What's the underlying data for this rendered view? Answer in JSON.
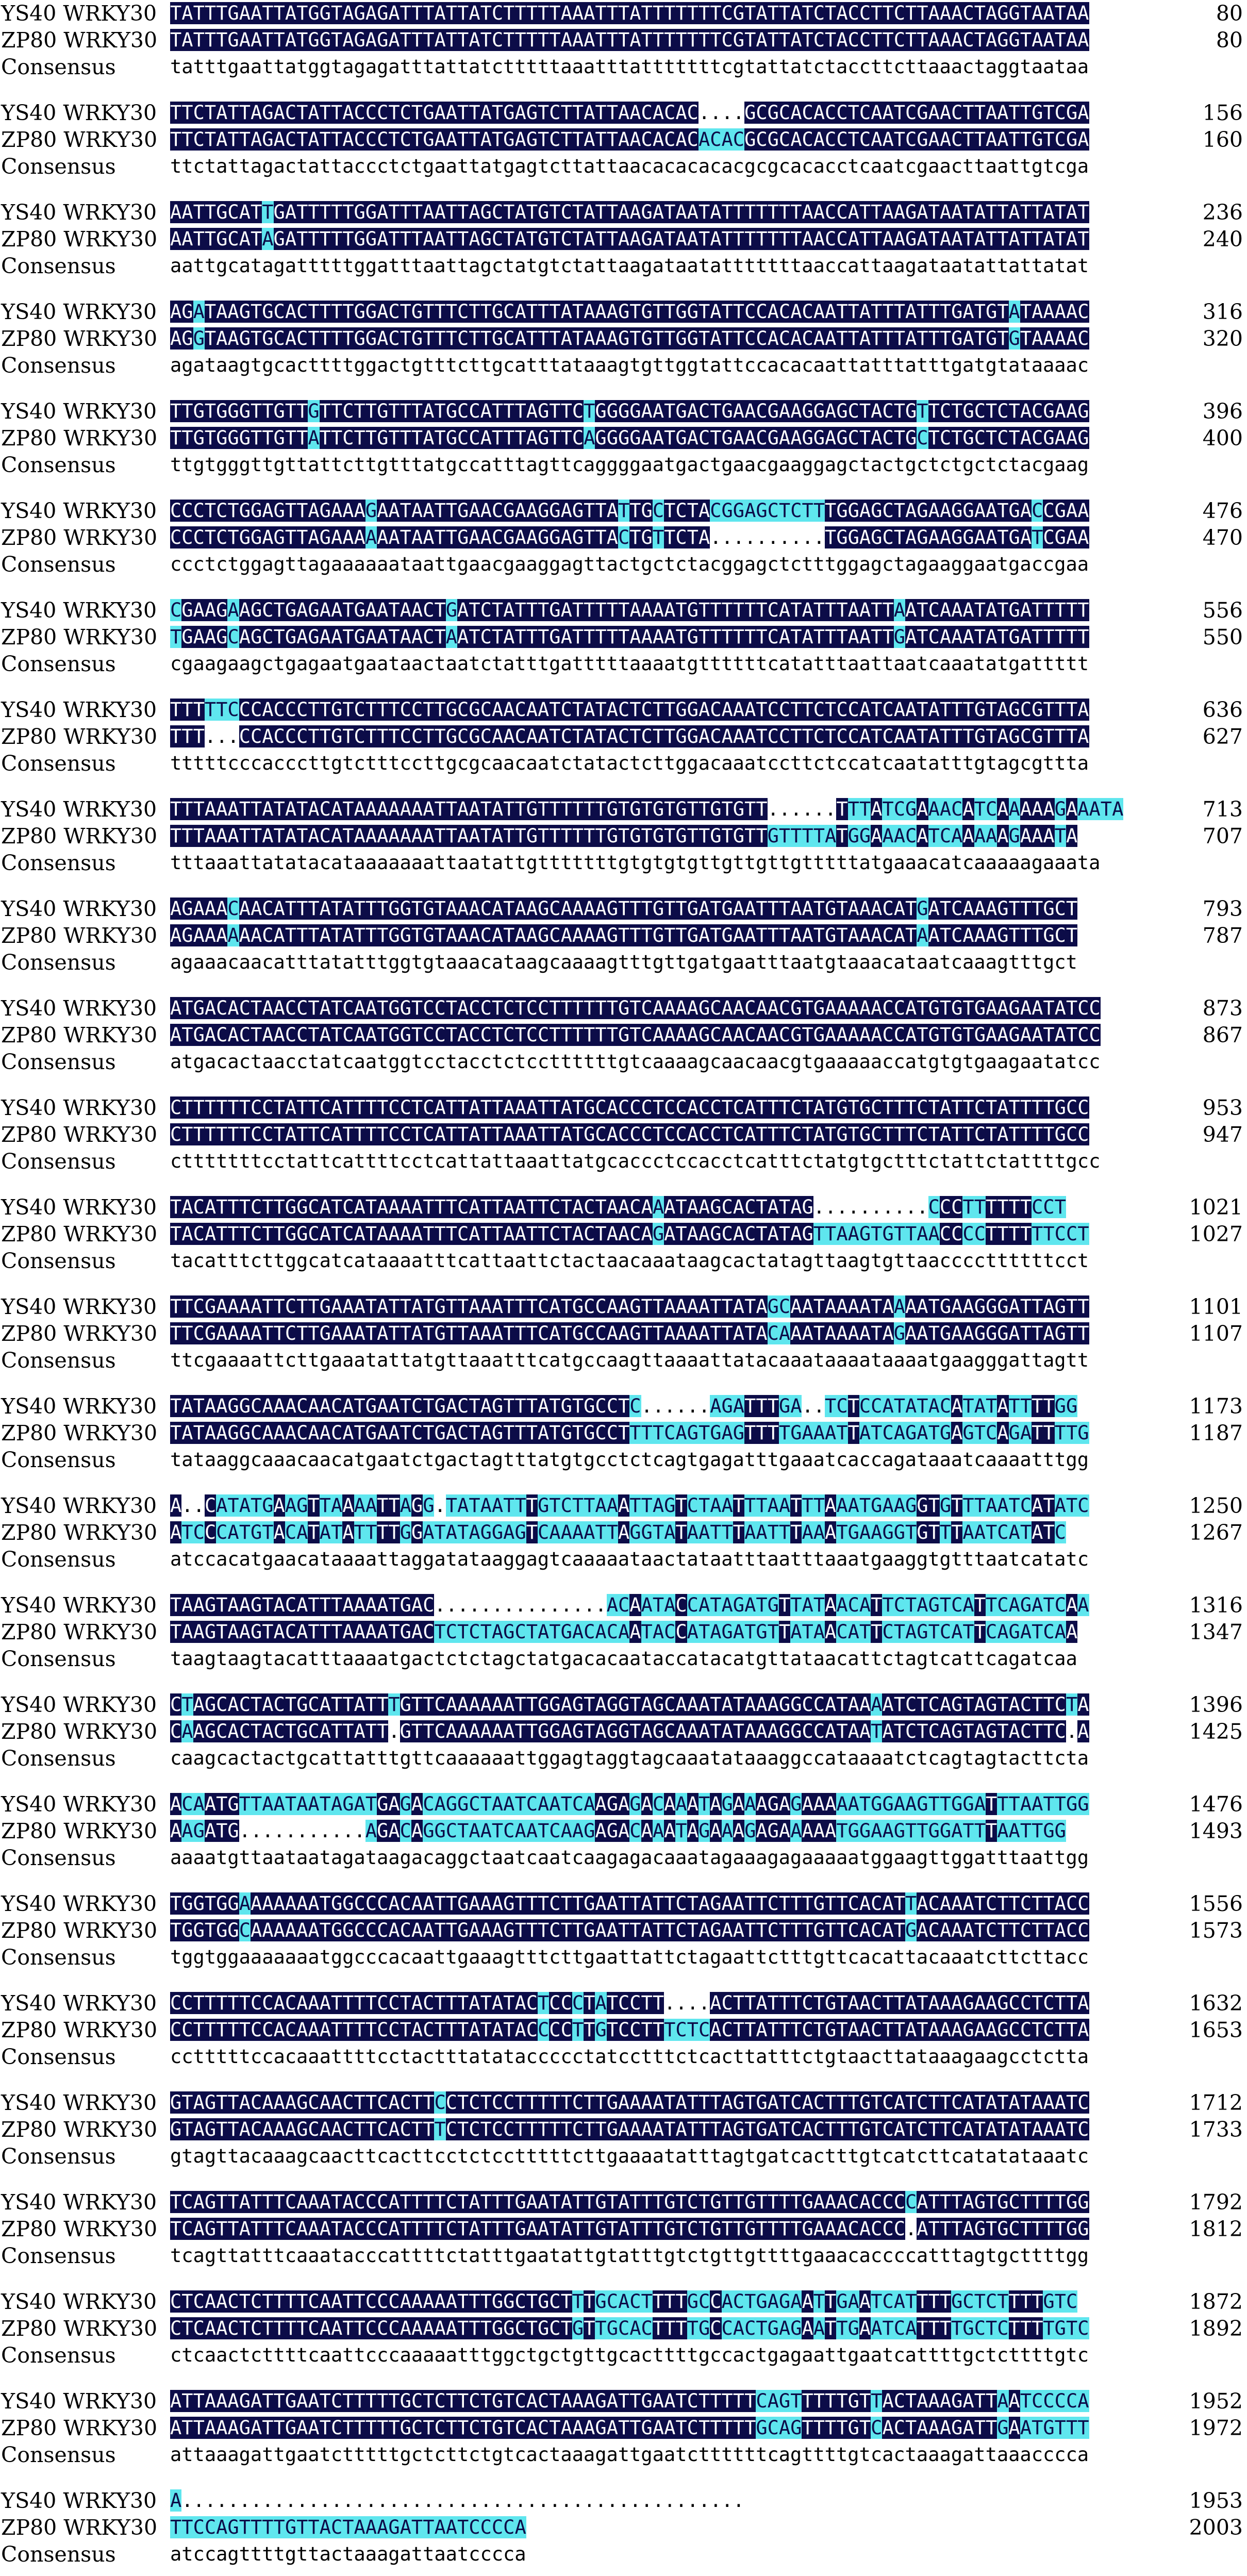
{
  "labels": {
    "seq1": "YS40 WRKY30",
    "seq2": "ZP80 WRKY30",
    "consensus": "Consensus"
  },
  "colors": {
    "identical_bg": "#0c0c48",
    "identical_fg": "#ffffff",
    "partial_bg": "#5fe6ee",
    "background": "#ffffff"
  },
  "blocks": [
    {
      "s1": "TATTTGAATTATGGTAGAGATTTATTATCTTTTTAAATTTATTTTTTTCGTATTATCTACCTTCTTAAACTAGGTAATAA",
      "s2": "TATTTGAATTATGGTAGAGATTTATTATCTTTTTAAATTTATTTTTTTCGTATTATCTACCTTCTTAAACTAGGTAATAA",
      "cons": "tatttgaattatggtagagatttattatctttttaaatttatttttttcgtattatctaccttcttaaactaggtaataa",
      "n1": "80",
      "n2": "80"
    },
    {
      "s1": "TTCTATTAGACTATTACCCTCTGAATTATGAGTCTTATTAACACAC....GCGCACACCTCAATCGAACTTAATTGTCGA",
      "s2": "TTCTATTAGACTATTACCCTCTGAATTATGAGTCTTATTAACACACACACGCGCACACCTCAATCGAACTTAATTGTCGA",
      "cons": "ttctattagactattaccctctgaattatgagtcttattaacacacacacgcgcacacctcaatcgaacttaattgtcga",
      "n1": "156",
      "n2": "160"
    },
    {
      "s1": "AATTGCATTGATTTTTGGATTTAATTAGCTATGTCTATTAAGATAATATTTTTTTAACCATTAAGATAATATTATTATAT",
      "s2": "AATTGCATAGATTTTTGGATTTAATTAGCTATGTCTATTAAGATAATATTTTTTTAACCATTAAGATAATATTATTATAT",
      "cons": "aattgcatagatttttggatttaattagctatgtctattaagataatatttttttaaccattaagataatattattatat",
      "n1": "236",
      "n2": "240"
    },
    {
      "s1": "AGATAAGTGCACTTTTGGACTGTTTCTTGCATTTATAAAGTGTTGGTATTCCACACAATTATTTATTTGATGTATAAAAC",
      "s2": "AGGTAAGTGCACTTTTGGACTGTTTCTTGCATTTATAAAGTGTTGGTATTCCACACAATTATTTATTTGATGTGTAAAAC",
      "cons": "agataagtgcacttttggactgtttcttgcatttataaagtgttggtattccacacaattatttatttgatgtataaaac",
      "n1": "316",
      "n2": "320"
    },
    {
      "s1": "TTGTGGGTTGTTGTTCTTGTTTATGCCATTTAGTTCTGGGGAATGACTGAACGAAGGAGCTACTGTTCTGCTCTACGAAG",
      "s2": "TTGTGGGTTGTTATTCTTGTTTATGCCATTTAGTTCAGGGGAATGACTGAACGAAGGAGCTACTGCTCTGCTCTACGAAG",
      "cons": "ttgtgggttgttattcttgtttatgccatttagttcaggggaatgactgaacgaaggagctactgctctgctctacgaag",
      "n1": "396",
      "n2": "400"
    },
    {
      "s1": "CCCTCTGGAGTTAGAAAGAATAATTGAACGAAGGAGTTATTGCTCTACGGAGCTCTTTGGAGCTAGAAGGAATGACCGAA",
      "s2": "CCCTCTGGAGTTAGAAAAAATAATTGAACGAAGGAGTTACTGTTCTA..........TGGAGCTAGAAGGAATGATCGAA",
      "cons": "ccctctggagttagaaaaaataattgaacgaaggagttactgctctacggagctctttggagctagaaggaatgaccgaa",
      "n1": "476",
      "n2": "470"
    },
    {
      "s1": "CGAAGAAGCTGAGAATGAATAACTGATCTATTTGATTTTTAAAATGTTTTTTCATATTTAATTAATCAAATATGATTTTT",
      "s2": "TGAAGCAGCTGAGAATGAATAACTAATCTATTTGATTTTTAAAATGTTTTTTCATATTTAATTGATCAAATATGATTTTT",
      "cons": "cgaagaagctgagaatgaataactaatctatttgatttttaaaatgttttttcatatttaattaatcaaatatgattttt",
      "n1": "556",
      "n2": "550"
    },
    {
      "s1": "TTTTTCCCACCCTTGTCTTTCCTTGCGCAACAATCTATACTCTTGGACAAATCCTTCTCCATCAATATTTGTAGCGTTTA",
      "s2": "TTT...CCACCCTTGTCTTTCCTTGCGCAACAATCTATACTCTTGGACAAATCCTTCTCCATCAATATTTGTAGCGTTTA",
      "cons": "tttttcccacccttgtctttccttgcgcaacaatctatactcttggacaaatccttctccatcaatatttgtagcgttta",
      "n1": "636",
      "n2": "627"
    },
    {
      "s1": "TTTAAATTATATACATAAAAAAATTAATATTGTTTTTTGTGTGTGTTGTGTT......TTTATCGAAACATCAAAAAGAAATA",
      "s2": "TTTAAATTATATACATAAAAAAATTAATATTGTTTTTTGTGTGTGTTGTGTTGTTTTATGGAAACATCAAAAAGAAATA",
      "cons": "tttaaattatatacataaaaaaattaatattgtttttttgtgtgtgttgttgttgtttttatgaaacatcaaaaagaaata",
      "n1": "713",
      "n2": "707"
    },
    {
      "s1": "AGAAACAACATTTATATTTGGTGTAAACATAAGCAAAAGTTTGTTGATGAATTTAATGTAAACATGATCAAAGTTTGCT",
      "s2": "AGAAAAAACATTTATATTTGGTGTAAACATAAGCAAAAGTTTGTTGATGAATTTAATGTAAACATAATCAAAGTTTGCT",
      "cons": "agaaacaacatttatatttggtgtaaacataagcaaaagtttgttgatgaatttaatgtaaacataatcaaagtttgct",
      "n1": "793",
      "n2": "787"
    },
    {
      "s1": "ATGACACTAACCTATCAATGGTCCTACCTCTCCTTTTTTGTCAAAAGCAACAACGTGAAAAACCATGTGTGAAGAATATCC",
      "s2": "ATGACACTAACCTATCAATGGTCCTACCTCTCCTTTTTTGTCAAAAGCAACAACGTGAAAAACCATGTGTGAAGAATATCC",
      "cons": "atgacactaacctatcaatggtcctacctctccttttttgtcaaaagcaacaacgtgaaaaaccatgtgtgaagaatatcc",
      "n1": "873",
      "n2": "867"
    },
    {
      "s1": "CTTTTTTCCTATTCATTTTCCTCATTATTAAATTATGCACCCTCCACCTCATTTCTATGTGCTTTCTATTCTATTTTGCC",
      "s2": "CTTTTTTCCTATTCATTTTCCTCATTATTAAATTATGCACCCTCCACCTCATTTCTATGTGCTTTCTATTCTATTTTGCC",
      "cons": "ctttttttcctattcattttcctcattattaaattatgcaccctccacctcatttctatgtgctttctattctattttgcc",
      "n1": "953",
      "n2": "947"
    },
    {
      "s1": "TACATTTCTTGGCATCATAAAATTTCATTAATTCTACTAACAAATAAGCACTATAG..........CCCTTTTTTCCT",
      "s2": "TACATTTCTTGGCATCATAAAATTTCATTAATTCTACTAACAGATAAGCACTATAGTTAAGTGTTAACCCCTTTTTTCCT",
      "cons": "tacatttcttggcatcataaaatttcattaattctactaacaaataagcactatagttaagtgttaaccccttttttcct",
      "n1": "1021",
      "n2": "1027"
    },
    {
      "s1": "TTCGAAAATTCTTGAAATATTATGTTAAATTTCATGCCAAGTTAAAATTATAGCAATAAAATAAAATGAAGGGATTAGTT",
      "s2": "TTCGAAAATTCTTGAAATATTATGTTAAATTTCATGCCAAGTTAAAATTATACAAATAAAATAGAATGAAGGGATTAGTT",
      "cons": "ttcgaaaattcttgaaatattatgttaaatttcatgccaagttaaaattatacaaataaaataaaatgaagggattagtt",
      "n1": "1101",
      "n2": "1107"
    },
    {
      "s1": "TATAAGGCAAACAACATGAATCTGACTAGTTTATGTGCCTC......AGATTTGA..TCTCCATATACATATATTTTGG",
      "s2": "TATAAGGCAAACAACATGAATCTGACTAGTTTATGTGCCTTTTCAGTGAGTTTTGAAATTATCAGATGAGTCAGATTTTG",
      "cons": "tataaggcaaacaacatgaatctgactagtttatgtgcctctcagtgagatttgaaatcaccagataaatcaaaatttgg",
      "n1": "1173",
      "n2": "1187"
    },
    {
      "s1": "A..CATATGAAGTTAAAATTAGG.TATAATTTGTCTTAAATTAGTCTAATTTAATTTAAATGAAGGTGTTTAATCATATC",
      "s2": "ATCCCATGTACATATATTTTGGATATAGGAGTCAAAATTAGGTATAATTTAATTTAAATGAAGGTGTTTAATCATATC",
      "cons": "atccacatgaacataaaattaggatataaggagtcaaaaataactataatttaatttaaatgaaggtgtttaatcatatc",
      "n1": "1250",
      "n2": "1267"
    },
    {
      "s1": "TAAGTAAGTACATTTAAAATGAC...............ACAATACCATAGATGTTATAACATTCTAGTCATTCAGATCAA",
      "s2": "TAAGTAAGTACATTTAAAATGACTCTCTAGCTATGACACAATACCATAGATGTTATAACATTCTAGTCATTCAGATCAA",
      "cons": "taagtaagtacatttaaaatgactctctagctatgacacaataccatacatgttataacattctagtcattcagatcaa",
      "n1": "1316",
      "n2": "1347"
    },
    {
      "s1": "CTAGCACTACTGCATTATTTGTTCAAAAAATTGGAGTAGGTAGCAAATATAAAGGCCATAAAATCTCAGTAGTACTTCTA",
      "s2": "CAAGCACTACTGCATTATT.GTTCAAAAAATTGGAGTAGGTAGCAAATATAAAGGCCATAATATCTCAGTAGTACTTC.A",
      "cons": "caagcactactgcattatttgttcaaaaaattggagtaggtagcaaatataaaggccataaaatctcagtagtacttcta",
      "n1": "1396",
      "n2": "1425"
    },
    {
      "s1": "ACAATGTTAATAATAGATGAGACAGGCTAATCAATCAAGAGACAAATAGAAAGAGAAAAATGGAAGTTGGATTTAATTGG",
      "s2": "AAGATG...........AGACAGGCTAATCAATCAAGAGACAAATAGAAAGAGAAAAATGGAAGTTGGATTTAATTGG",
      "cons": "aaaatgttaataatagataagacaggctaatcaatcaagagacaaatagaaagagaaaaatggaagttggatttaattgg",
      "n1": "1476",
      "n2": "1493"
    },
    {
      "s1": "TGGTGGAAAAAAATGGCCCACAATTGAAAGTTTCTTGAATTATTCTAGAATTCTTTGTTCACATTACAAATCTTCTTACC",
      "s2": "TGGTGGCAAAAAATGGCCCACAATTGAAAGTTTCTTGAATTATTCTAGAATTCTTTGTTCACATGACAAATCTTCTTACC",
      "cons": "tggtggaaaaaaatggcccacaattgaaagtttcttgaattattctagaattctttgttcacattacaaatcttcttacc",
      "n1": "1556",
      "n2": "1573"
    },
    {
      "s1": "CCTTTTTCCACAAATTTTCCTACTTTATATACTCCCTATCCTT....ACTTATTTCTGTAACTTATAAAGAAGCCTCTTA",
      "s2": "CCTTTTTCCACAAATTTTCCTACTTTATATACCCCTTGTCCTTTCTCACTTATTTCTGTAACTTATAAAGAAGCCTCTTA",
      "cons": "cctttttccacaaattttcctactttatataccccctatcctttctcacttatttctgtaacttataaagaagcctctta",
      "n1": "1632",
      "n2": "1653"
    },
    {
      "s1": "GTAGTTACAAAGCAACTTCACTTCCTCTCCTTTTTCTTGAAAATATTTAGTGATCACTTTGTCATCTTCATATATAAATC",
      "s2": "GTAGTTACAAAGCAACTTCACTTTCTCTCCTTTTTCTTGAAAATATTTAGTGATCACTTTGTCATCTTCATATATAAATC",
      "cons": "gtagttacaaagcaacttcacttcctctcctttttcttgaaaatatttagtgatcactttgtcatcttcatatataaatc",
      "n1": "1712",
      "n2": "1733"
    },
    {
      "s1": "TCAGTTATTTCAAATACCCATTTTCTATTTGAATATTGTATTTGTCTGTTGTTTTGAAACACCCCATTTAGTGCTTTTGG",
      "s2": "TCAGTTATTTCAAATACCCATTTTCTATTTGAATATTGTATTTGTCTGTTGTTTTGAAACACCC.ATTTAGTGCTTTTGG",
      "cons": "tcagttatttcaaatacccattttctatttgaatattgtatttgtctgttgttttgaaacaccccatttagtgcttttgg",
      "n1": "1792",
      "n2": "1812"
    },
    {
      "s1": "CTCAACTCTTTTCAATTCCCAAAAATTTGGCTGCTTTGCACTTTTGCCACTGAGAATTGAATCATTTTGCTCTTTTGTC",
      "s2": "CTCAACTCTTTTCAATTCCCAAAAATTTGGCTGCTGTTGCACTTTTGCCACTGAGAATTGAATCATTTTGCTCTTTTGTC",
      "cons": "ctcaactcttttcaattcccaaaaatttggctgctgttgcacttttgccactgagaattgaatcattttgctcttttgtc",
      "n1": "1872",
      "n2": "1892"
    },
    {
      "s1": "ATTAAAGATTGAATCTTTTTGCTCTTCTGTCACTAAAGATTGAATCTTTTTCAGTTTTTGTTACTAAAGATTAATCCCCA",
      "s2": "ATTAAAGATTGAATCTTTTTGCTCTTCTGTCACTAAAGATTGAATCTTTTTGCAGTTTTGTCACTAAAGATTGAATGTTT",
      "cons": "attaaagattgaatctttttgctcttctgtcactaaagattgaatcttttttcagttttgtcactaaagattaaacccca",
      "n1": "1952",
      "n2": "1972"
    },
    {
      "s1": "A.................................................",
      "s2": "TTCCAGTTTTGTTACTAAAGATTAATCCCCA",
      "cons": "atccagttttgttactaaagattaatcccca",
      "n1": "1953",
      "n2": "2003"
    }
  ]
}
